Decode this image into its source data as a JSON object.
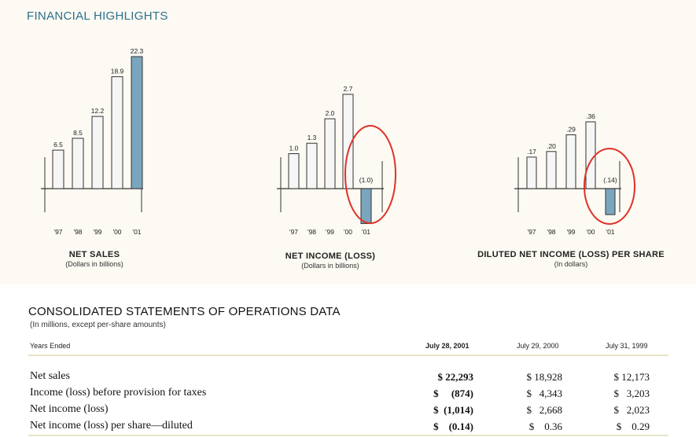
{
  "header": {
    "title": "FINANCIAL HIGHLIGHTS"
  },
  "colors": {
    "accent": "#2c6f8c",
    "bar_highlight": "#7aa6bd",
    "bar_plain": "#f6f6f6",
    "annotation": "#e03128"
  },
  "chart_data": [
    {
      "type": "bar",
      "title": "NET SALES",
      "subtitle": "(Dollars in billions)",
      "categories": [
        "'97",
        "'98",
        "'99",
        "'00",
        "'01"
      ],
      "values": [
        6.5,
        8.5,
        12.2,
        18.9,
        22.3
      ],
      "labels": [
        "6.5",
        "8.5",
        "12.2",
        "18.9",
        "22.3"
      ],
      "highlight_index": 4,
      "scale_max": 22.3
    },
    {
      "type": "bar",
      "title": "NET INCOME (LOSS)",
      "subtitle": "(Dollars in billions)",
      "categories": [
        "'97",
        "'98",
        "'99",
        "'00",
        "'01"
      ],
      "values": [
        1.0,
        1.3,
        2.0,
        2.7,
        -1.0
      ],
      "labels": [
        "1.0",
        "1.3",
        "2.0",
        "2.7",
        "(1.0)"
      ],
      "highlight_index": 4,
      "scale_max": 2.7,
      "annotation": "red ellipse around '01 bar"
    },
    {
      "type": "bar",
      "title": "DILUTED NET INCOME (LOSS) PER SHARE",
      "subtitle": "(In dollars)",
      "categories": [
        "'97",
        "'98",
        "'99",
        "'00",
        "'01"
      ],
      "values": [
        0.17,
        0.2,
        0.29,
        0.36,
        -0.14
      ],
      "labels": [
        ".17",
        ".20",
        ".29",
        ".36",
        "(.14)"
      ],
      "highlight_index": 4,
      "scale_max": 0.36,
      "annotation": "red ellipse around '01 bar"
    }
  ],
  "operations": {
    "title": "CONSOLIDATED STATEMENTS OF OPERATIONS DATA",
    "subtitle": "(In millions, except per-share amounts)",
    "years_label": "Years Ended",
    "columns": [
      "July 28, 2001",
      "July 29, 2000",
      "July 31, 1999"
    ],
    "rows": [
      {
        "label": "Net sales",
        "values": [
          "$ 22,293",
          "$ 18,928",
          "$ 12,173"
        ]
      },
      {
        "label": "Income (loss) before provision for taxes",
        "values": [
          "$     (874)",
          "$   4,343",
          "$   3,203"
        ]
      },
      {
        "label": "Net income (loss)",
        "values": [
          "$  (1,014)",
          "$   2,668",
          "$   2,023"
        ]
      },
      {
        "label": "Net income (loss) per share—diluted",
        "values": [
          "$    (0.14)",
          "$    0.36",
          "$    0.29"
        ]
      }
    ]
  }
}
